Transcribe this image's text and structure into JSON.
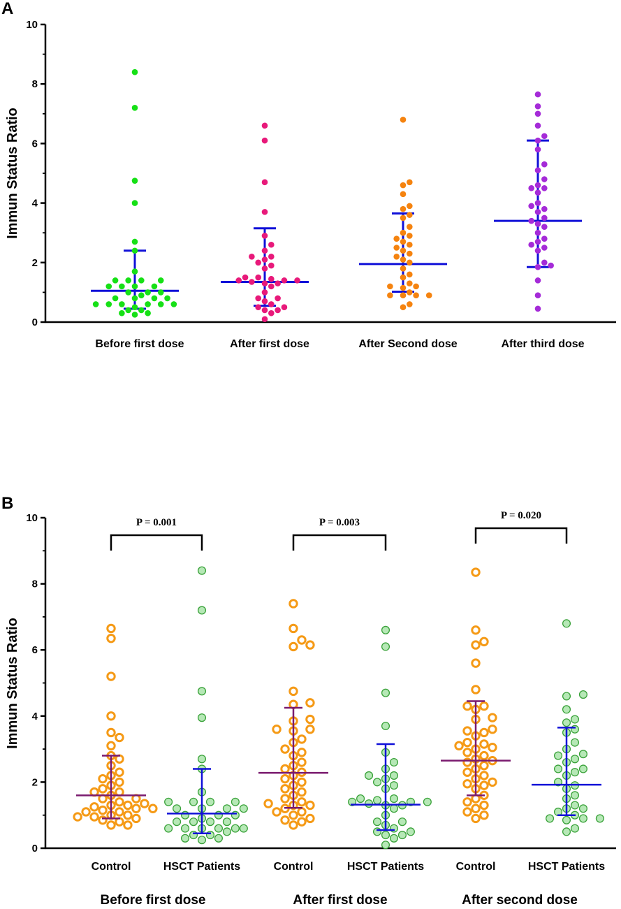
{
  "colors": {
    "axis": "#000000",
    "bar_blue": "#1010d8",
    "bar_purple": "#7a1a6e",
    "green": "#16e016",
    "pink": "#e8197a",
    "orange": "#f5830f",
    "violet": "#a52bd8",
    "ring_orange": "#f59a16",
    "light_green_fill": "#b6e8b6",
    "light_green_edge": "#3aa23a"
  },
  "chart_data": [
    {
      "panel": "A",
      "type": "scatter",
      "ylabel": "Immun Status Ratio",
      "ylim": [
        0,
        10
      ],
      "yticks": [
        "0",
        "2",
        "4",
        "6",
        "8",
        "10"
      ],
      "categories": [
        {
          "label": "Before first dose",
          "color": "green",
          "median": 1.05,
          "low": 0.45,
          "high": 2.4,
          "points": [
            8.4,
            7.2,
            4.75,
            4.0,
            2.7,
            2.4,
            1.7,
            1.4,
            1.4,
            1.4,
            1.4,
            1.2,
            1.2,
            1.2,
            1.2,
            1.0,
            1.0,
            1.0,
            0.9,
            0.8,
            0.8,
            0.8,
            0.8,
            0.6,
            0.6,
            0.6,
            0.6,
            0.6,
            0.6,
            0.5,
            0.4,
            0.4,
            0.3,
            0.3,
            0.25
          ]
        },
        {
          "label": "After first dose",
          "color": "pink",
          "median": 1.35,
          "low": 0.55,
          "high": 3.15,
          "points": [
            6.6,
            6.1,
            4.7,
            3.7,
            2.9,
            2.6,
            2.4,
            2.2,
            2.2,
            2.1,
            2.0,
            1.9,
            1.8,
            1.5,
            1.5,
            1.45,
            1.4,
            1.4,
            1.4,
            1.35,
            1.3,
            1.3,
            1.2,
            1.0,
            0.8,
            0.8,
            0.7,
            0.6,
            0.5,
            0.5,
            0.4,
            0.4,
            0.3,
            0.1
          ]
        },
        {
          "label": "After Second dose",
          "color": "orange",
          "median": 1.95,
          "low": 1.02,
          "high": 3.65,
          "points": [
            6.8,
            4.7,
            4.6,
            4.3,
            3.9,
            3.8,
            3.6,
            3.5,
            3.2,
            3.0,
            2.9,
            2.8,
            2.7,
            2.6,
            2.5,
            2.4,
            2.3,
            2.2,
            2.1,
            2.0,
            1.8,
            1.6,
            1.5,
            1.3,
            1.2,
            1.2,
            1.15,
            1.0,
            0.9,
            0.9,
            0.9,
            0.9,
            0.6,
            0.5
          ]
        },
        {
          "label": "After third dose",
          "color": "violet",
          "median": 3.4,
          "low": 1.85,
          "high": 6.1,
          "points": [
            7.65,
            7.25,
            7.0,
            6.6,
            6.25,
            6.1,
            5.8,
            5.3,
            5.1,
            4.8,
            4.6,
            4.5,
            4.5,
            4.35,
            4.0,
            3.9,
            3.8,
            3.7,
            3.5,
            3.4,
            3.3,
            3.2,
            3.0,
            2.8,
            2.7,
            2.6,
            2.5,
            2.4,
            2.0,
            1.9,
            1.85,
            1.4,
            0.9,
            0.45
          ]
        }
      ]
    },
    {
      "panel": "B",
      "type": "scatter",
      "ylabel": "Immun Status Ratio",
      "ylim": [
        0,
        10
      ],
      "yticks": [
        "0",
        "2",
        "4",
        "6",
        "8",
        "10"
      ],
      "groups": [
        {
          "label": "Before first dose",
          "pvalue": "P = 0.001",
          "series": [
            {
              "label": "Control",
              "style": "ring_orange",
              "bar_color": "bar_purple",
              "median": 1.6,
              "low": 0.9,
              "high": 2.8,
              "points": [
                6.65,
                6.35,
                5.2,
                4.0,
                3.5,
                3.35,
                3.1,
                2.8,
                2.7,
                2.5,
                2.3,
                2.2,
                2.1,
                2.0,
                1.9,
                1.8,
                1.7,
                1.7,
                1.6,
                1.5,
                1.5,
                1.4,
                1.35,
                1.3,
                1.3,
                1.25,
                1.2,
                1.2,
                1.15,
                1.1,
                1.1,
                1.0,
                1.0,
                0.95,
                0.95,
                0.9,
                0.85,
                0.8,
                0.7,
                0.7
              ]
            },
            {
              "label": "HSCT Patients",
              "style": "light_green",
              "bar_color": "bar_blue",
              "median": 1.05,
              "low": 0.45,
              "high": 2.4,
              "points": [
                8.4,
                7.2,
                4.75,
                3.95,
                2.7,
                2.4,
                1.7,
                1.4,
                1.4,
                1.4,
                1.4,
                1.2,
                1.2,
                1.2,
                1.2,
                1.0,
                1.0,
                1.0,
                0.9,
                0.8,
                0.8,
                0.8,
                0.8,
                0.6,
                0.6,
                0.6,
                0.6,
                0.6,
                0.6,
                0.5,
                0.4,
                0.4,
                0.3,
                0.3,
                0.25
              ]
            }
          ]
        },
        {
          "label": "After first dose",
          "pvalue": "P = 0.003",
          "series": [
            {
              "label": "Control",
              "style": "ring_orange",
              "bar_color": "bar_purple",
              "median": 2.28,
              "low": 1.22,
              "high": 4.25,
              "points": [
                7.4,
                6.65,
                6.3,
                6.15,
                6.1,
                4.75,
                4.4,
                4.35,
                3.9,
                3.85,
                3.6,
                3.6,
                3.55,
                3.3,
                3.2,
                3.0,
                2.9,
                2.8,
                2.6,
                2.5,
                2.4,
                2.3,
                2.2,
                2.1,
                2.0,
                1.9,
                1.8,
                1.7,
                1.6,
                1.5,
                1.4,
                1.35,
                1.3,
                1.3,
                1.2,
                1.1,
                1.1,
                1.0,
                0.9,
                0.85,
                0.8,
                0.7
              ]
            },
            {
              "label": "HSCT Patients",
              "style": "light_green",
              "bar_color": "bar_blue",
              "median": 1.32,
              "low": 0.55,
              "high": 3.15,
              "points": [
                6.6,
                6.1,
                4.7,
                3.7,
                2.9,
                2.6,
                2.4,
                2.2,
                2.2,
                2.1,
                2.0,
                1.9,
                1.8,
                1.5,
                1.5,
                1.45,
                1.4,
                1.4,
                1.4,
                1.35,
                1.3,
                1.3,
                1.2,
                1.0,
                0.8,
                0.8,
                0.7,
                0.6,
                0.5,
                0.5,
                0.4,
                0.4,
                0.3,
                0.1
              ]
            }
          ]
        },
        {
          "label": "After second dose",
          "pvalue": "P = 0.020",
          "series": [
            {
              "label": "Control",
              "style": "ring_orange",
              "bar_color": "bar_purple",
              "median": 2.65,
              "low": 1.6,
              "high": 4.45,
              "points": [
                8.35,
                6.6,
                6.25,
                6.15,
                5.6,
                4.8,
                4.3,
                4.3,
                4.2,
                3.95,
                3.9,
                3.6,
                3.55,
                3.5,
                3.4,
                3.2,
                3.15,
                3.1,
                3.05,
                3.0,
                2.9,
                2.8,
                2.7,
                2.65,
                2.6,
                2.5,
                2.4,
                2.3,
                2.2,
                2.1,
                2.0,
                1.95,
                1.9,
                1.8,
                1.6,
                1.5,
                1.4,
                1.3,
                1.2,
                1.1,
                1.0,
                0.9
              ]
            },
            {
              "label": "HSCT Patients",
              "style": "light_green",
              "bar_color": "bar_blue",
              "median": 1.92,
              "low": 1.0,
              "high": 3.65,
              "points": [
                6.8,
                4.65,
                4.6,
                4.2,
                3.9,
                3.8,
                3.6,
                3.5,
                3.2,
                3.0,
                2.85,
                2.8,
                2.7,
                2.6,
                2.4,
                2.4,
                2.3,
                2.2,
                2.0,
                1.9,
                1.8,
                1.6,
                1.5,
                1.3,
                1.2,
                1.2,
                1.1,
                1.0,
                0.9,
                0.9,
                0.9,
                0.85,
                0.6,
                0.5
              ]
            }
          ]
        }
      ]
    }
  ]
}
